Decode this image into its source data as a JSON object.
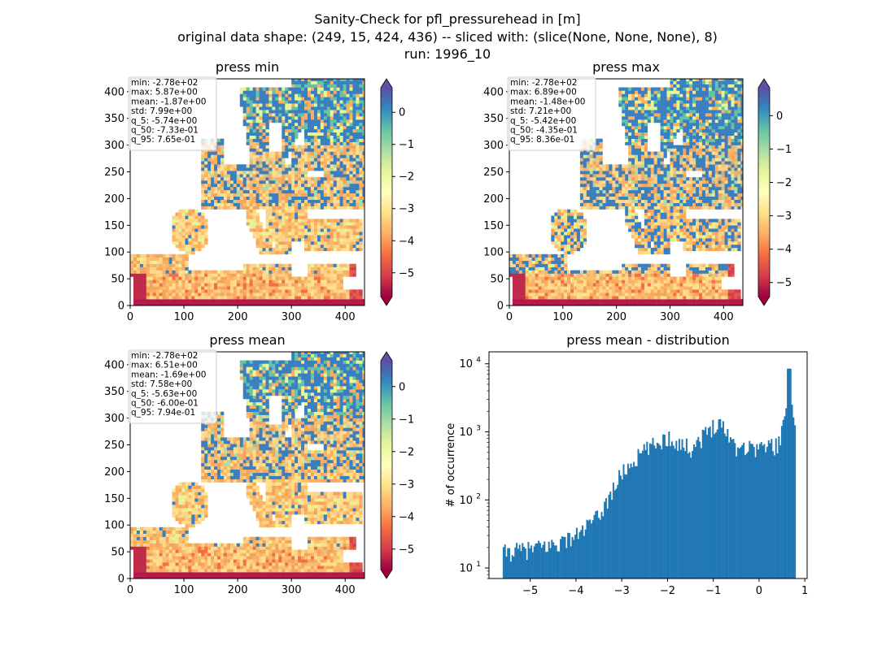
{
  "figure": {
    "title_lines": [
      "Sanity-Check for pfl_pressurehead in [m]",
      "original data shape: (249, 15, 424, 436) -- sliced with: (slice(None, None, None), 8)",
      "run: 1996_10"
    ]
  },
  "colors": {
    "colormap": [
      "#5e4fa2",
      "#3288bd",
      "#66c2a5",
      "#abdda4",
      "#e6f598",
      "#ffffbf",
      "#fee08b",
      "#fdae61",
      "#f46d43",
      "#d53e4f",
      "#9e0142"
    ],
    "land_dry": "#fdae61",
    "land_wet": "#3a7fc0",
    "histogram_bar": "#1f77b4"
  },
  "chart_data": [
    {
      "type": "heatmap",
      "title": "press min",
      "xlim": [
        0,
        436
      ],
      "ylim": [
        0,
        424
      ],
      "x_ticks": [
        0,
        100,
        200,
        300,
        400
      ],
      "y_ticks": [
        0,
        50,
        100,
        150,
        200,
        250,
        300,
        350,
        400
      ],
      "colorbar": {
        "range": [
          -5.74,
          0.765
        ],
        "ticks": [
          0,
          -1,
          -2,
          -3,
          -4,
          -5
        ],
        "colormap": "Spectral"
      },
      "stats": [
        "min: -2.78e+02",
        "max: 5.87e+00",
        "mean: -1.87e+00",
        "std: 7.99e+00",
        "q_5: -5.74e+00",
        "q_50: -7.33e-01",
        "q_95: 7.65e-01"
      ]
    },
    {
      "type": "heatmap",
      "title": "press max",
      "xlim": [
        0,
        436
      ],
      "ylim": [
        0,
        424
      ],
      "x_ticks": [
        0,
        100,
        200,
        300,
        400
      ],
      "y_ticks": [
        0,
        50,
        100,
        150,
        200,
        250,
        300,
        350,
        400
      ],
      "colorbar": {
        "range": [
          -5.42,
          0.836
        ],
        "ticks": [
          0,
          -1,
          -2,
          -3,
          -4,
          -5
        ],
        "colormap": "Spectral"
      },
      "stats": [
        "min: -2.78e+02",
        "max: 6.89e+00",
        "mean: -1.48e+00",
        "std: 7.21e+00",
        "q_5: -5.42e+00",
        "q_50: -4.35e-01",
        "q_95: 8.36e-01"
      ]
    },
    {
      "type": "heatmap",
      "title": "press mean",
      "xlim": [
        0,
        436
      ],
      "ylim": [
        0,
        424
      ],
      "x_ticks": [
        0,
        100,
        200,
        300,
        400
      ],
      "y_ticks": [
        0,
        50,
        100,
        150,
        200,
        250,
        300,
        350,
        400
      ],
      "colorbar": {
        "range": [
          -5.63,
          0.794
        ],
        "ticks": [
          0,
          -1,
          -2,
          -3,
          -4,
          -5
        ],
        "colormap": "Spectral"
      },
      "stats": [
        "min: -2.78e+02",
        "max: 6.51e+00",
        "mean: -1.69e+00",
        "std: 7.58e+00",
        "q_5: -5.63e+00",
        "q_50: -6.00e-01",
        "q_95: 7.94e-01"
      ]
    },
    {
      "type": "bar",
      "title": "press mean - distribution",
      "ylabel": "# of occurrence",
      "y_scale": "log",
      "xlim": [
        -5.9,
        1.05
      ],
      "ylim": [
        7,
        15000
      ],
      "x_ticks": [
        -5,
        -4,
        -3,
        -2,
        -1,
        0,
        1
      ],
      "y_ticks": [
        10,
        100,
        1000,
        10000
      ],
      "y_tick_labels": [
        "10^1",
        "10^2",
        "10^3",
        "10^4"
      ],
      "bins": [
        -5.6,
        0.8
      ],
      "control_points": [
        {
          "x": -5.6,
          "y": 17
        },
        {
          "x": -5.0,
          "y": 19
        },
        {
          "x": -4.5,
          "y": 22
        },
        {
          "x": -4.0,
          "y": 30
        },
        {
          "x": -3.5,
          "y": 58
        },
        {
          "x": -3.0,
          "y": 250
        },
        {
          "x": -2.5,
          "y": 540
        },
        {
          "x": -2.0,
          "y": 840
        },
        {
          "x": -1.5,
          "y": 580
        },
        {
          "x": -1.2,
          "y": 900
        },
        {
          "x": -0.9,
          "y": 1500
        },
        {
          "x": -0.7,
          "y": 1000
        },
        {
          "x": -0.5,
          "y": 620
        },
        {
          "x": 0.0,
          "y": 600
        },
        {
          "x": 0.4,
          "y": 650
        },
        {
          "x": 0.6,
          "y": 1800
        },
        {
          "x": 0.65,
          "y": 8500
        },
        {
          "x": 0.8,
          "y": 1200
        }
      ]
    }
  ]
}
